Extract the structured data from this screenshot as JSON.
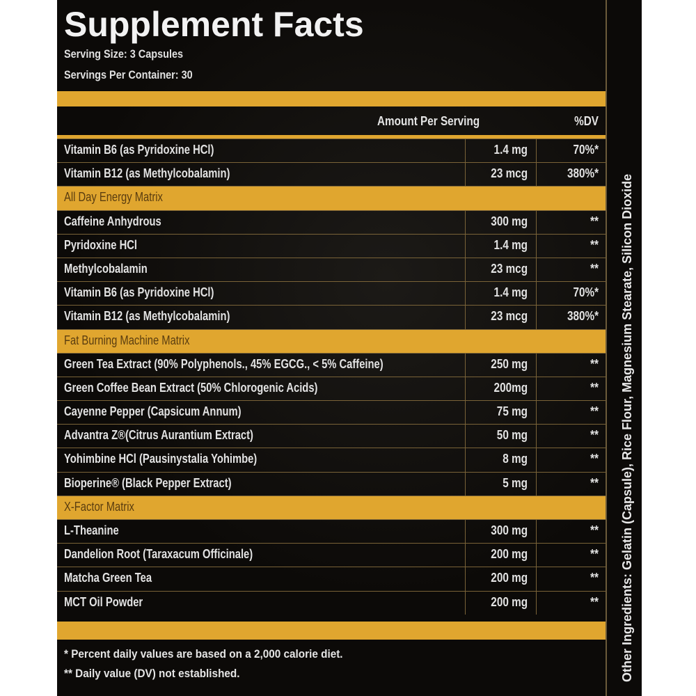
{
  "title": "Supplement Facts",
  "serving_size": "Serving Size: 3 Capsules",
  "servings_per_container": "Servings Per Container: 30",
  "header": {
    "amount": "Amount Per Serving",
    "dv": "%DV"
  },
  "rows": [
    {
      "name": "Vitamin B6 (as Pyridoxine HCl)",
      "amount": "1.4 mg",
      "dv": "70%*"
    },
    {
      "name": "Vitamin B12 (as Methylcobalamin)",
      "amount": "23 mcg",
      "dv": "380%*"
    },
    {
      "name": "All Day Energy Matrix",
      "category": true
    },
    {
      "name": "Caffeine Anhydrous",
      "amount": "300 mg",
      "dv": "**"
    },
    {
      "name": "Pyridoxine HCl",
      "amount": "1.4 mg",
      "dv": "**"
    },
    {
      "name": "Methylcobalamin",
      "amount": "23 mcg",
      "dv": "**"
    },
    {
      "name": "Vitamin B6 (as Pyridoxine HCl)",
      "amount": "1.4 mg",
      "dv": "70%*"
    },
    {
      "name": "Vitamin B12 (as Methylcobalamin)",
      "amount": "23 mcg",
      "dv": "380%*"
    },
    {
      "name": "Fat Burning Machine Matrix",
      "category": true
    },
    {
      "name": "Green Tea Extract (90% Polyphenols., 45% EGCG., < 5% Caffeine)",
      "amount": "250 mg",
      "dv": "**"
    },
    {
      "name": "Green Coffee Bean Extract (50% Chlorogenic Acids)",
      "amount": "200mg",
      "dv": "**"
    },
    {
      "name": "Cayenne Pepper (Capsicum Annum)",
      "amount": "75 mg",
      "dv": "**"
    },
    {
      "name": "Advantra Z®(Citrus Aurantium Extract)",
      "amount": "50 mg",
      "dv": "**"
    },
    {
      "name": "Yohimbine HCl (Pausinystalia Yohimbe)",
      "amount": "8 mg",
      "dv": "**"
    },
    {
      "name": "Bioperine® (Black Pepper Extract)",
      "amount": "5 mg",
      "dv": "**"
    },
    {
      "name": "X-Factor Matrix",
      "category": true
    },
    {
      "name": "L-Theanine",
      "amount": "300 mg",
      "dv": "**"
    },
    {
      "name": "Dandelion Root (Taraxacum Officinale)",
      "amount": "200 mg",
      "dv": "**"
    },
    {
      "name": "Matcha Green Tea",
      "amount": "200 mg",
      "dv": "**"
    },
    {
      "name": "MCT Oil Powder",
      "amount": "200 mg",
      "dv": "**"
    }
  ],
  "footnotes": [
    "* Percent daily values are based on a 2,000 calorie diet.",
    "** Daily value (DV) not established."
  ],
  "other_ingredients": "Other Ingredients: Gelatin (Capsule), Rice Flour, Magnesium Stearate, Silicon Dioxide",
  "colors": {
    "background": "#0c0a08",
    "gold": "#e0a62f",
    "text": "#e2e2e2"
  }
}
